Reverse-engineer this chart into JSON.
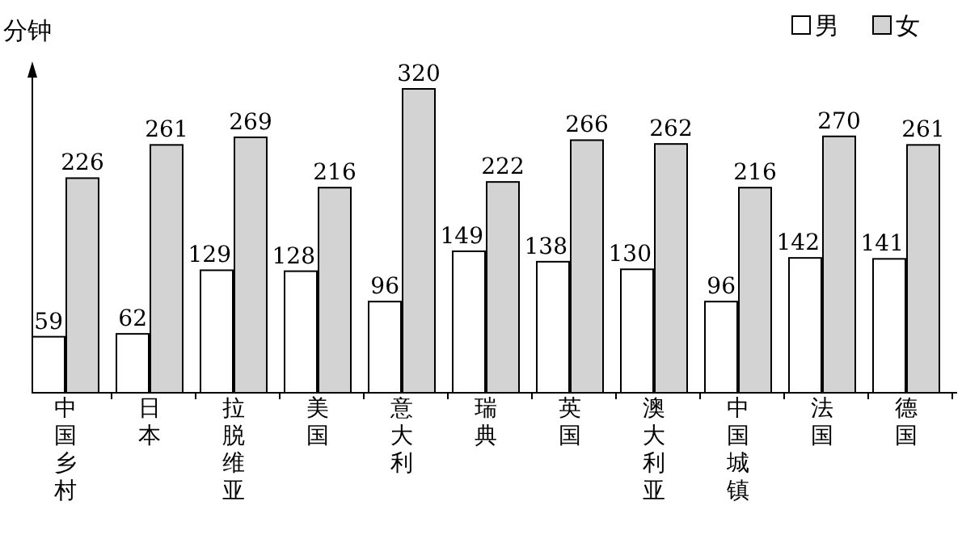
{
  "chart_data": {
    "type": "bar",
    "ylabel": "分钟",
    "categories": [
      "中国乡村",
      "日本",
      "拉脱维亚",
      "美国",
      "意大利",
      "瑞典",
      "英国",
      "澳大利亚",
      "中国城镇",
      "法国",
      "德国"
    ],
    "series": [
      {
        "name": "男",
        "color": "#ffffff",
        "values": [
          59,
          62,
          129,
          128,
          96,
          149,
          138,
          130,
          96,
          142,
          141
        ]
      },
      {
        "name": "女",
        "color": "#d3d3d3",
        "values": [
          226,
          261,
          269,
          216,
          320,
          222,
          266,
          262,
          216,
          270,
          261
        ]
      }
    ],
    "data_labels": true,
    "legend": "top right"
  }
}
